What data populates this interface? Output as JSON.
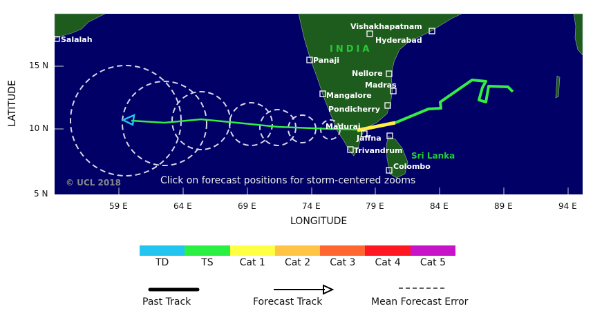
{
  "map": {
    "ocean_color": "#000066",
    "land_color": "#1e5c1e",
    "y_axis_label": "LATITUDE",
    "x_axis_label": "LONGITUDE",
    "lat_ticks": [
      "15 N",
      "10 N",
      "5 N"
    ],
    "lon_ticks": [
      "59 E",
      "64 E",
      "69 E",
      "74 E",
      "79 E",
      "84 E",
      "89 E",
      "94 E"
    ],
    "country_labels": [
      "INDIA",
      "Sri Lanka"
    ],
    "cities": [
      "Salalah",
      "Vishakhapatnam",
      "Hyderabad",
      "Panaji",
      "Nellore",
      "Madras",
      "Mangalore",
      "Pondicherry",
      "Madurai",
      "Jaffna",
      "Trivandrum",
      "Colombo"
    ],
    "copyright": "© UCL 2018",
    "instruction": "Click on forecast positions for storm-centered zooms"
  },
  "legend": {
    "categories": [
      {
        "label": "TD",
        "color": "#22c4f0"
      },
      {
        "label": "TS",
        "color": "#2af044"
      },
      {
        "label": "Cat 1",
        "color": "#ffff44"
      },
      {
        "label": "Cat 2",
        "color": "#ffc444"
      },
      {
        "label": "Cat 3",
        "color": "#ff6630"
      },
      {
        "label": "Cat 4",
        "color": "#ff1822"
      },
      {
        "label": "Cat 5",
        "color": "#c814c8"
      }
    ],
    "past_track": "Past Track",
    "forecast_track": "Forecast Track",
    "mean_error": "Mean Forecast Error"
  }
}
